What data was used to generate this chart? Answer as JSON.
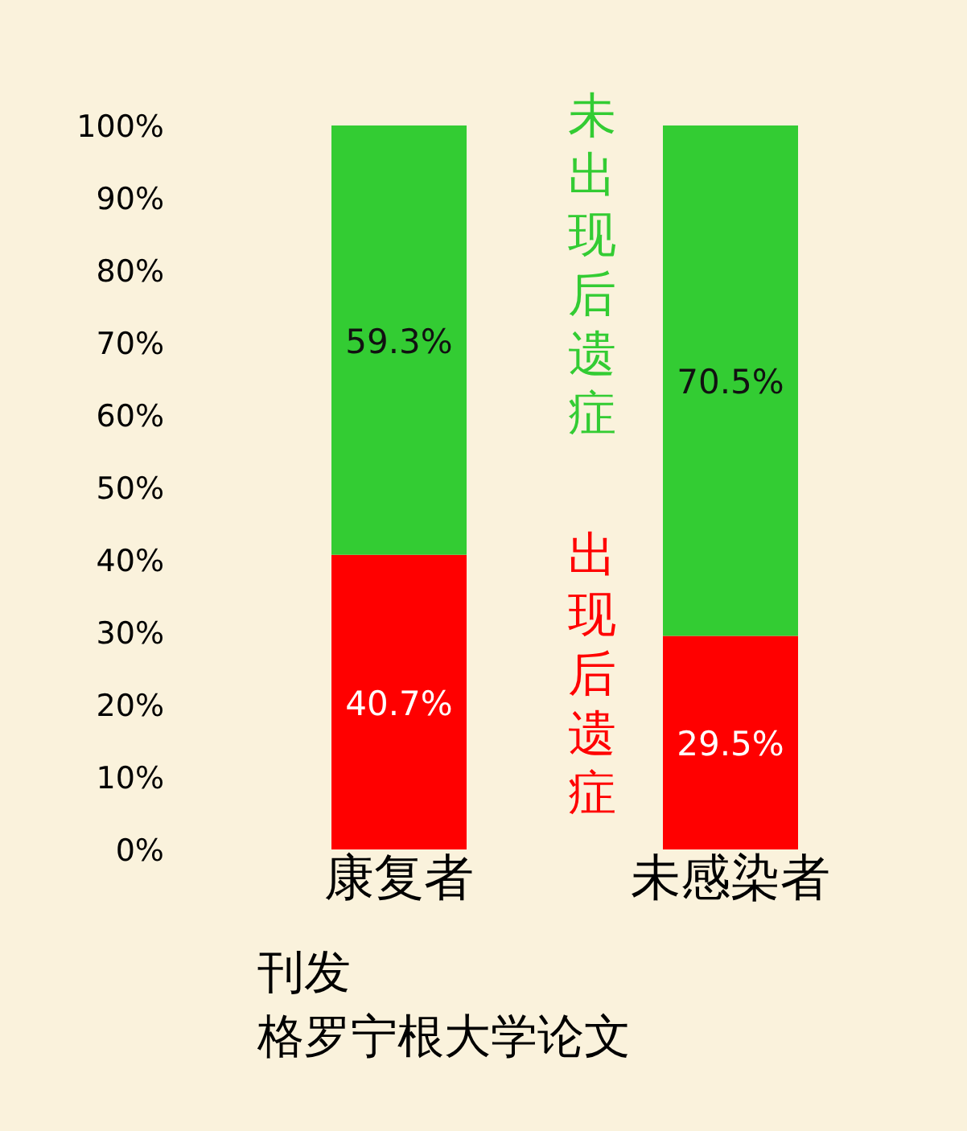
{
  "chart_data": {
    "type": "bar",
    "stacked": true,
    "categories": [
      "康复者",
      "未感染者"
    ],
    "series": [
      {
        "name": "出现后遗症",
        "color": "#ff0000",
        "values": [
          40.7,
          29.5
        ],
        "value_labels": [
          "40.7%",
          "29.5%"
        ]
      },
      {
        "name": "未出现后遗症",
        "color": "#33cc33",
        "values": [
          59.3,
          70.5
        ],
        "value_labels": [
          "59.3%",
          "70.5%"
        ]
      }
    ],
    "ylim": [
      0,
      100
    ],
    "yticks": [
      {
        "value": 0,
        "label": "0%"
      },
      {
        "value": 10,
        "label": "10%"
      },
      {
        "value": 20,
        "label": "20%"
      },
      {
        "value": 30,
        "label": "30%"
      },
      {
        "value": 40,
        "label": "40%"
      },
      {
        "value": 50,
        "label": "50%"
      },
      {
        "value": 60,
        "label": "60%"
      },
      {
        "value": 70,
        "label": "70%"
      },
      {
        "value": 80,
        "label": "80%"
      },
      {
        "value": 90,
        "label": "90%"
      },
      {
        "value": 100,
        "label": "100%"
      }
    ],
    "annotations": [
      "刊发",
      "格罗宁根大学论文"
    ]
  }
}
